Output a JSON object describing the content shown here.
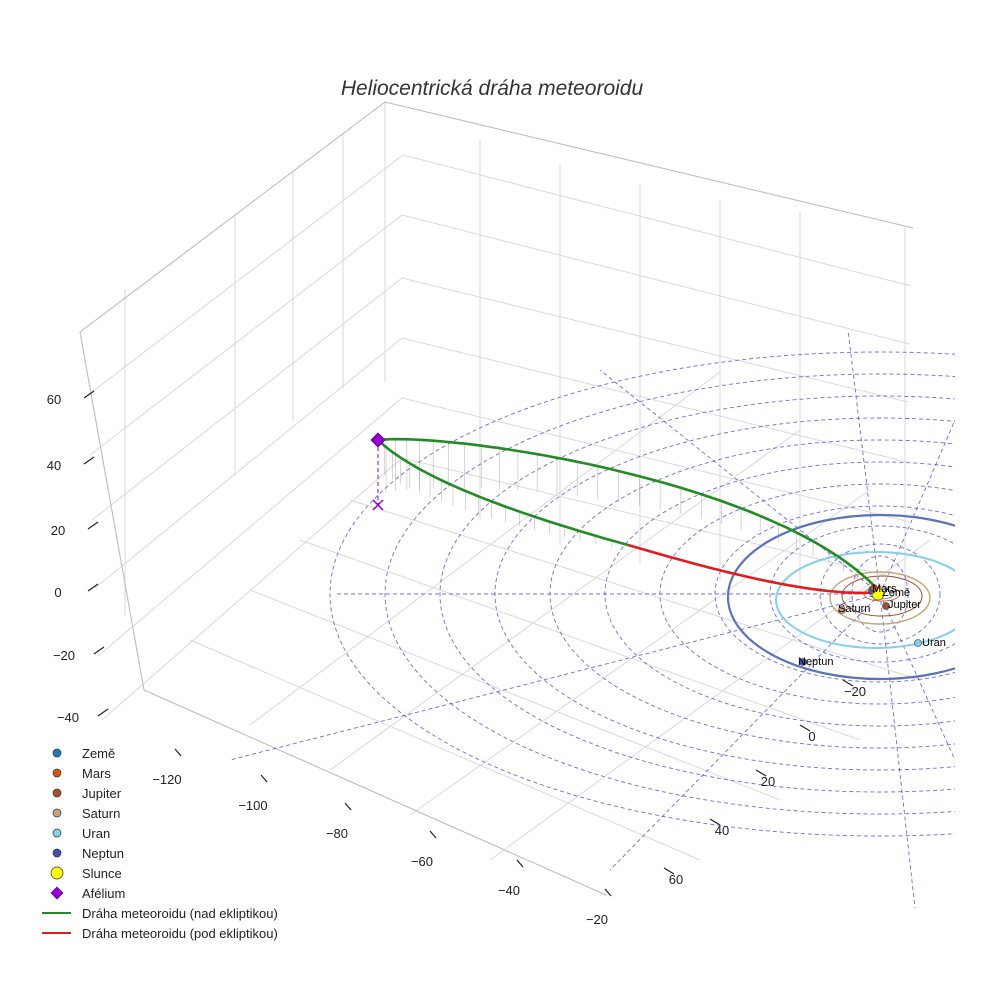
{
  "chart_data": {
    "type": "line3d",
    "title": "Heliocentrická dráha meteoroidu",
    "x_ticks": [
      "−120",
      "−100",
      "−80",
      "−60",
      "−40",
      "−20"
    ],
    "y_ticks": [
      "−20",
      "0",
      "20",
      "40",
      "60"
    ],
    "z_ticks": [
      "60",
      "40",
      "20",
      "0",
      "−20",
      "−40"
    ],
    "x_range": [
      -130,
      -15
    ],
    "y_range": [
      -25,
      70
    ],
    "z_range": [
      -45,
      70
    ],
    "legend_position": "lower-left",
    "grid": true,
    "legend": [
      {
        "label": "Země",
        "marker": "circle",
        "color": "#1f77b4"
      },
      {
        "label": "Mars",
        "marker": "circle",
        "color": "#d9531e"
      },
      {
        "label": "Jupiter",
        "marker": "circle",
        "color": "#a0522d"
      },
      {
        "label": "Saturn",
        "marker": "circle",
        "color": "#c8a27a"
      },
      {
        "label": "Uran",
        "marker": "circle",
        "color": "#87ceeb"
      },
      {
        "label": "Neptun",
        "marker": "circle",
        "color": "#3f51b5"
      },
      {
        "label": "Slunce",
        "marker": "circle",
        "color": "#ffff00"
      },
      {
        "label": "Afélium",
        "marker": "diamond",
        "color": "#9400d3"
      },
      {
        "label": "Dráha meteoroidu (nad ekliptikou)",
        "marker": "line",
        "color": "#228b22"
      },
      {
        "label": "Dráha meteoroidu (pod ekliptikou)",
        "marker": "line",
        "color": "#e41a1c"
      }
    ],
    "planets": [
      {
        "name": "Země",
        "label": "Země",
        "color": "#1f77b4"
      },
      {
        "name": "Mars",
        "label": "Mars",
        "color": "#d9531e"
      },
      {
        "name": "Jupiter",
        "label": "Jupiter",
        "color": "#a0522d"
      },
      {
        "name": "Saturn",
        "label": "Saturn",
        "color": "#c8a27a"
      },
      {
        "name": "Uran",
        "label": "Uran",
        "color": "#87ceeb"
      },
      {
        "name": "Neptun",
        "label": "Neptun",
        "color": "#3f51b5"
      }
    ],
    "colors": {
      "ecliptic_grid": "#3b3bd6",
      "orbit_above": "#228b22",
      "orbit_below": "#e41a1c",
      "aphelion": "#9400d3",
      "sun": "#ffff00"
    }
  }
}
